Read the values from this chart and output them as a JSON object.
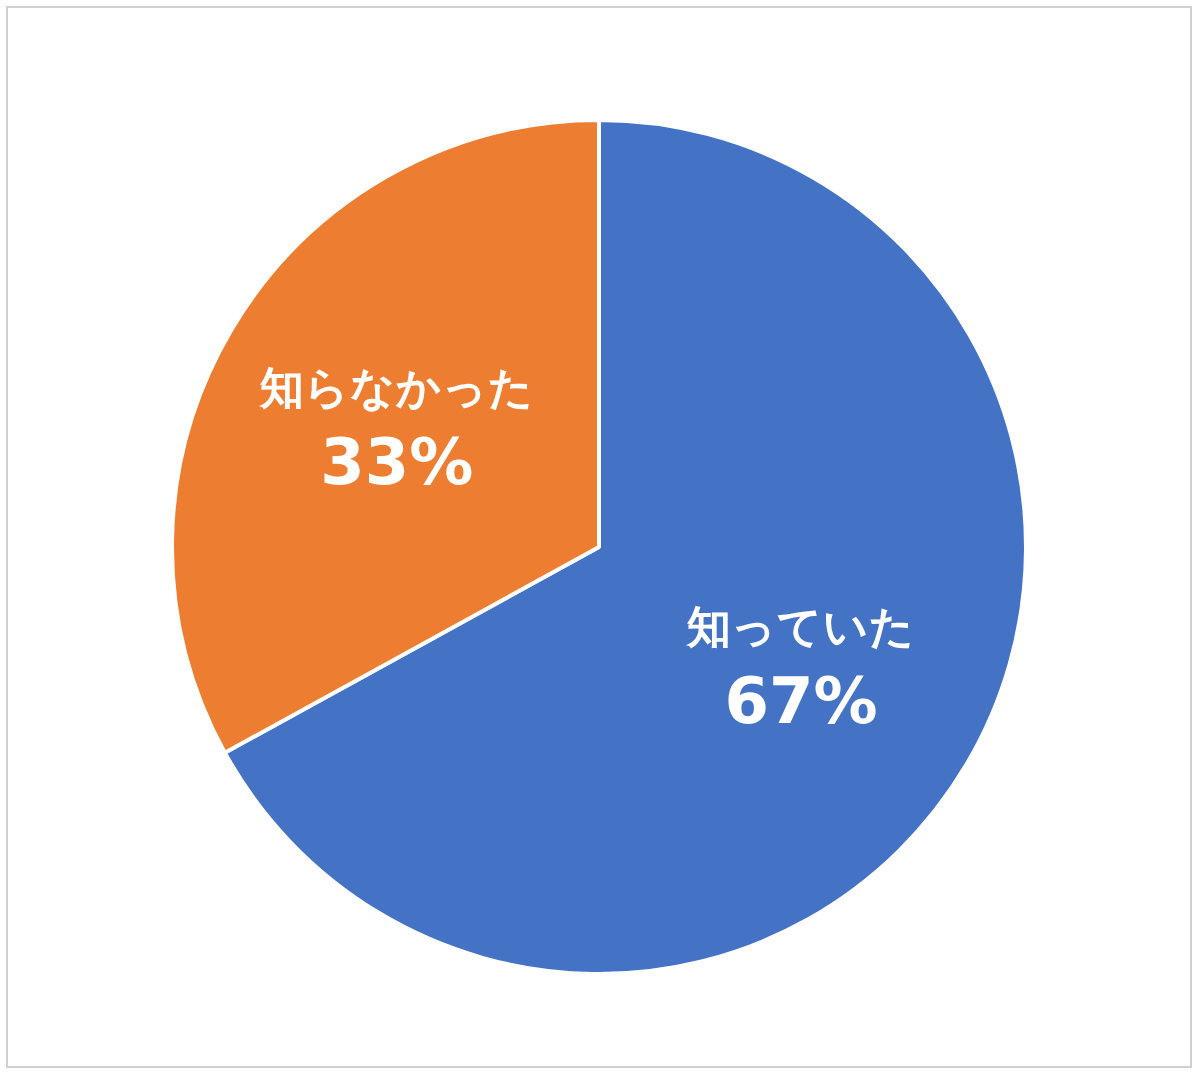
{
  "chart_data": {
    "type": "pie",
    "categories": [
      "知っていた",
      "知らなかった"
    ],
    "values": [
      67,
      33
    ],
    "colors": [
      "#4472c4",
      "#ed7d31"
    ],
    "value_labels": [
      "67%",
      "33%"
    ],
    "legend": false
  }
}
